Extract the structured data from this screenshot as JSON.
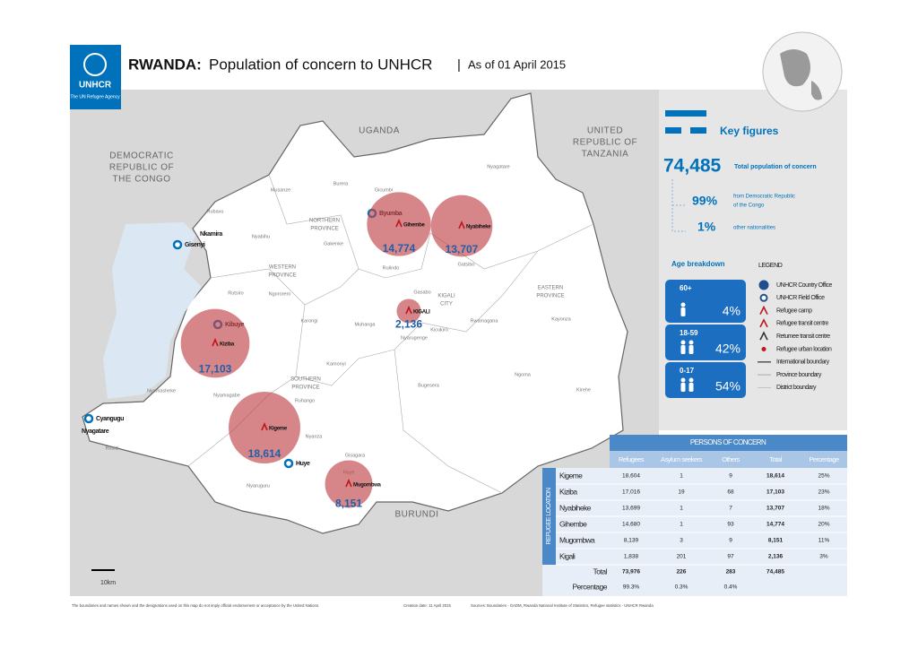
{
  "header": {
    "logo_name": "UNHCR",
    "logo_tagline": "The UN Refugee Agency",
    "title_country": "RWANDA:",
    "title": "Population of concern to UNHCR",
    "separator": "|",
    "date": "As of 01 April 2015"
  },
  "map": {
    "countries": [
      [
        "UGANDA"
      ],
      [
        "UNITED",
        "REPUBLIC OF",
        "TANZANIA"
      ],
      [
        "DEMOCRATIC",
        "REPUBLIC OF",
        "THE CONGO"
      ],
      [
        "BURUNDI"
      ]
    ],
    "provinces": [
      [
        "NORTHERN",
        "PROVINCE"
      ],
      [
        "WESTERN",
        "PROVINCE"
      ],
      [
        "KIGALI",
        "CITY"
      ],
      [
        "EASTERN",
        "PROVINCE"
      ],
      [
        "SOUTHERN",
        "PROVINCE"
      ]
    ],
    "districts": [
      "Nyagatare",
      "Burera",
      "Musanze",
      "Gicumbi",
      "Rubavu",
      "Nyabihu",
      "Gakenke",
      "Rulindo",
      "Gatsibo",
      "Rutsiro",
      "Ngororero",
      "Gasabo",
      "Kayonza",
      "Karongi",
      "Muhanga",
      "Nyarugenge",
      "Kicukiro",
      "Rwamagana",
      "Kamonyi",
      "Ruhango",
      "Bugesera",
      "Ngoma",
      "Kirehe",
      "Nyamasheke",
      "Nyamagabe",
      "Nyanza",
      "Rusizi",
      "Huye",
      "Gisagara",
      "Nyaruguru"
    ],
    "locations": [
      "Byumba",
      "Gisenyi",
      "Nkamira",
      "Kibuye",
      "Huye",
      "Cyangugu",
      "Nyagatare"
    ],
    "bubbles": [
      {
        "name": "Gihembe",
        "value": 14774,
        "label": "14,774"
      },
      {
        "name": "Nyabiheke",
        "value": 13707,
        "label": "13,707"
      },
      {
        "name": "KIGALI",
        "value": 2136,
        "label": "2,136"
      },
      {
        "name": "Kiziba",
        "value": 17103,
        "label": "17,103"
      },
      {
        "name": "Kigeme",
        "value": 18614,
        "label": "18,614"
      },
      {
        "name": "Mugombwa",
        "value": 8151,
        "label": "8,151"
      }
    ],
    "scale": "10km"
  },
  "key_figures": {
    "title": "Key figures",
    "total": "74,485",
    "total_label": "Total population of concern",
    "drc_share": "99%",
    "drc_label": [
      "from Democratic Republic",
      "of the Congo"
    ],
    "other_share": "1%",
    "other_label": "other nationalities",
    "age_title": "Age breakdown",
    "ages": [
      {
        "group": "60+",
        "share": "4%"
      },
      {
        "group": "18-59",
        "share": "42%"
      },
      {
        "group": "0-17",
        "share": "54%"
      }
    ]
  },
  "legend": {
    "title": "LEGEND",
    "items": [
      "UNHCR Country Office",
      "UNHCR Field Office",
      "Refugee camp",
      "Refugee transit centre",
      "Returnee transit centre",
      "Refugee urban location",
      "International boundary",
      "Province boundary",
      "District boundary"
    ]
  },
  "table": {
    "title": "PERSONS OF CONCERN",
    "side_label": "REFUGEE LOCATION",
    "columns": [
      "Refugees",
      "Asylum seekers",
      "Others",
      "Total",
      "Percentage"
    ],
    "rows": [
      [
        "Kigeme",
        "18,604",
        "1",
        "9",
        "18,614",
        "25%"
      ],
      [
        "Kiziba",
        "17,016",
        "19",
        "68",
        "17,103",
        "23%"
      ],
      [
        "Nyabiheke",
        "13,699",
        "1",
        "7",
        "13,707",
        "18%"
      ],
      [
        "Gihembe",
        "14,680",
        "1",
        "93",
        "14,774",
        "20%"
      ],
      [
        "Mugombwa",
        "8,139",
        "3",
        "9",
        "8,151",
        "11%"
      ],
      [
        "Kigali",
        "1,838",
        "201",
        "97",
        "2,136",
        "3%"
      ]
    ],
    "total_row": [
      "Total",
      "73,976",
      "226",
      "283",
      "74,485"
    ],
    "percentage_row": [
      "Percentage",
      "99.3%",
      "0.3%",
      "0.4%"
    ]
  },
  "footer": {
    "disclaimer": "The boundaries and names shown and the designations used on this map do not imply official endorsement or acceptance by the United Nations.",
    "creation": "Creation date: 11 April 2015",
    "sources": "Sources: Boundaries - GADM, Rwanda National Institute of Statistics, Refugee statistics - UNHCR Rwanda"
  }
}
